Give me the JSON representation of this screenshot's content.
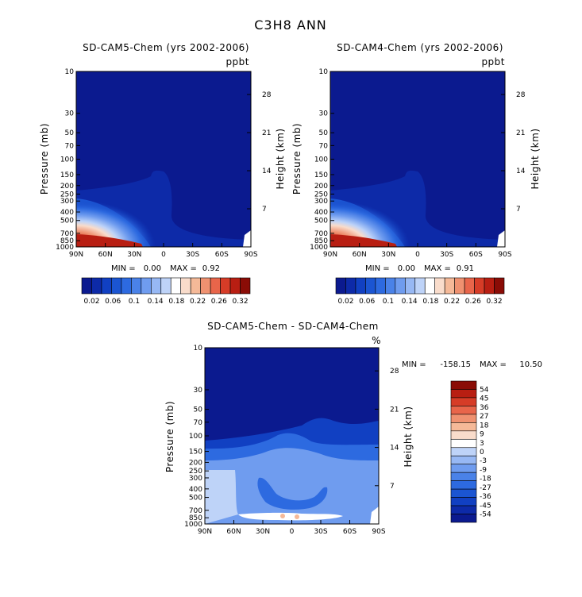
{
  "title": "C3H8 ANN",
  "colors": {
    "seq": [
      "#0b1a8f",
      "#0d2aa8",
      "#1140c2",
      "#1b55d2",
      "#2d6ae0",
      "#4a82e8",
      "#6f9cef",
      "#97b8f4",
      "#bed3f8",
      "#ffffff",
      "#f9dccb",
      "#f5b998",
      "#ef9170",
      "#e8654a",
      "#d63c27",
      "#b81e12",
      "#8a0c06"
    ],
    "diff": [
      "#0b1a8f",
      "#0d2aa8",
      "#1140c2",
      "#1b55d2",
      "#2d6ae0",
      "#4a82e8",
      "#6f9cef",
      "#97b8f4",
      "#bed3f8",
      "#ffffff",
      "#f9dccb",
      "#f5b998",
      "#ef9170",
      "#e8654a",
      "#d63c27",
      "#b81e12",
      "#8a0c06"
    ]
  },
  "chart_data": [
    {
      "type": "heatmap",
      "title": "SD-CAM5-Chem (yrs 2002-2006)",
      "units": "ppbt",
      "xlabel": "",
      "ylabel": "Pressure (mb)",
      "y2label": "Height (km)",
      "xticks": [
        "90N",
        "60N",
        "30N",
        "0",
        "30S",
        "60S",
        "90S"
      ],
      "xvalues": [
        90,
        60,
        30,
        0,
        -30,
        -60,
        -90
      ],
      "yticks": [
        "10",
        "30",
        "50",
        "70",
        "100",
        "150",
        "200",
        "250",
        "300",
        "400",
        "500",
        "700",
        "850",
        "1000"
      ],
      "yvalues": [
        10,
        30,
        50,
        70,
        100,
        150,
        200,
        250,
        300,
        400,
        500,
        700,
        850,
        1000
      ],
      "y2ticks": [
        "28",
        "21",
        "14",
        "7"
      ],
      "y2values": [
        28,
        21,
        14,
        7
      ],
      "ylim": [
        10,
        1000
      ],
      "min_label": "MIN =",
      "min_value": "0.00",
      "max_label": "MAX =",
      "max_value": "0.92",
      "colorbar_labels": [
        "0.02",
        "0.06",
        "0.1",
        "0.14",
        "0.18",
        "0.22",
        "0.26",
        "0.32"
      ],
      "colorbar_levels": [
        0.02,
        0.04,
        0.06,
        0.08,
        0.1,
        0.12,
        0.14,
        0.16,
        0.18,
        0.2,
        0.22,
        0.24,
        0.26,
        0.28,
        0.32
      ]
    },
    {
      "type": "heatmap",
      "title": "SD-CAM4-Chem (yrs 2002-2006)",
      "units": "ppbt",
      "xlabel": "",
      "ylabel": "Pressure (mb)",
      "y2label": "Height (km)",
      "xticks": [
        "90N",
        "60N",
        "30N",
        "0",
        "30S",
        "60S",
        "90S"
      ],
      "xvalues": [
        90,
        60,
        30,
        0,
        -30,
        -60,
        -90
      ],
      "yticks": [
        "10",
        "30",
        "50",
        "70",
        "100",
        "150",
        "200",
        "250",
        "300",
        "400",
        "500",
        "700",
        "850",
        "1000"
      ],
      "yvalues": [
        10,
        30,
        50,
        70,
        100,
        150,
        200,
        250,
        300,
        400,
        500,
        700,
        850,
        1000
      ],
      "y2ticks": [
        "28",
        "21",
        "14",
        "7"
      ],
      "y2values": [
        28,
        21,
        14,
        7
      ],
      "ylim": [
        10,
        1000
      ],
      "min_label": "MIN =",
      "min_value": "0.00",
      "max_label": "MAX =",
      "max_value": "0.91",
      "colorbar_labels": [
        "0.02",
        "0.06",
        "0.1",
        "0.14",
        "0.18",
        "0.22",
        "0.26",
        "0.32"
      ],
      "colorbar_levels": [
        0.02,
        0.04,
        0.06,
        0.08,
        0.1,
        0.12,
        0.14,
        0.16,
        0.18,
        0.2,
        0.22,
        0.24,
        0.26,
        0.28,
        0.32
      ]
    },
    {
      "type": "heatmap",
      "title": "SD-CAM5-Chem - SD-CAM4-Chem",
      "units": "%",
      "xlabel": "",
      "ylabel": "Pressure (mb)",
      "y2label": "Height (km)",
      "xticks": [
        "90N",
        "60N",
        "30N",
        "0",
        "30S",
        "60S",
        "90S"
      ],
      "xvalues": [
        90,
        60,
        30,
        0,
        -30,
        -60,
        -90
      ],
      "yticks": [
        "10",
        "30",
        "50",
        "70",
        "100",
        "150",
        "200",
        "250",
        "300",
        "400",
        "500",
        "700",
        "850",
        "1000"
      ],
      "yvalues": [
        10,
        30,
        50,
        70,
        100,
        150,
        200,
        250,
        300,
        400,
        500,
        700,
        850,
        1000
      ],
      "y2ticks": [
        "28",
        "21",
        "14",
        "7"
      ],
      "y2values": [
        28,
        21,
        14,
        7
      ],
      "ylim": [
        10,
        1000
      ],
      "min_label": "MIN =",
      "min_value": "-158.15",
      "max_label": "MAX =",
      "max_value": "10.50",
      "colorbar_labels": [
        "54",
        "45",
        "36",
        "27",
        "18",
        "9",
        "3",
        "0",
        "-3",
        "-9",
        "-18",
        "-27",
        "-36",
        "-45",
        "-54"
      ],
      "colorbar_levels": [
        54,
        45,
        36,
        27,
        18,
        9,
        3,
        0,
        -3,
        -9,
        -18,
        -27,
        -36,
        -45,
        -54
      ]
    }
  ]
}
